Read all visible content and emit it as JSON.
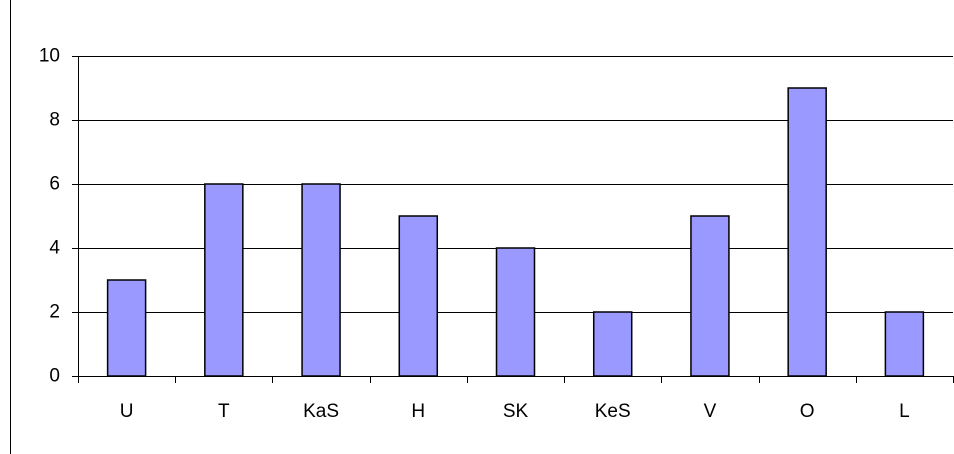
{
  "chart_data": {
    "type": "bar",
    "categories": [
      "U",
      "T",
      "KaS",
      "H",
      "SK",
      "KeS",
      "V",
      "O",
      "L"
    ],
    "values": [
      3,
      6,
      6,
      5,
      4,
      2,
      5,
      9,
      2
    ],
    "color": "#9999ff",
    "ylim": [
      0,
      10
    ],
    "yticks": [
      0,
      2,
      4,
      6,
      8,
      10
    ],
    "grid": true
  }
}
